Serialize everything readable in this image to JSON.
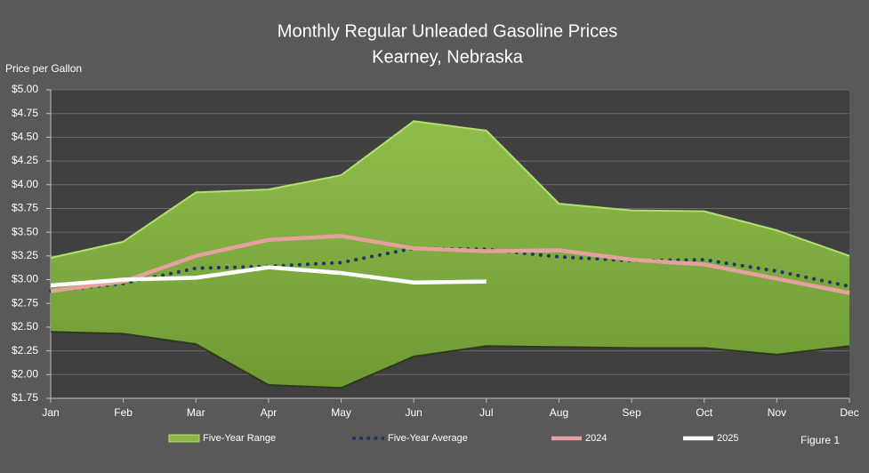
{
  "chart_data": {
    "type": "line",
    "title": "Monthly Regular Unleaded Gasoline Prices",
    "subtitle": "Kearney, Nebraska",
    "y_label": "Price per Gallon",
    "annotation": "Figure 1",
    "categories": [
      "Jan",
      "Feb",
      "Mar",
      "Apr",
      "May",
      "Jun",
      "Jul",
      "Aug",
      "Sep",
      "Oct",
      "Nov",
      "Dec"
    ],
    "ylim": [
      1.75,
      5.0
    ],
    "yticks": [
      {
        "value": 1.75,
        "label": "$1.75"
      },
      {
        "value": 2.0,
        "label": "$2.00"
      },
      {
        "value": 2.25,
        "label": "$2.25"
      },
      {
        "value": 2.5,
        "label": "$2.50"
      },
      {
        "value": 2.75,
        "label": "$2.75"
      },
      {
        "value": 3.0,
        "label": "$3.00"
      },
      {
        "value": 3.25,
        "label": "$3.25"
      },
      {
        "value": 3.5,
        "label": "$3.50"
      },
      {
        "value": 3.75,
        "label": "$3.75"
      },
      {
        "value": 4.0,
        "label": "$4.00"
      },
      {
        "value": 4.25,
        "label": "$4.25"
      },
      {
        "value": 4.5,
        "label": "$4.50"
      },
      {
        "value": 4.75,
        "label": "$4.75"
      },
      {
        "value": 5.0,
        "label": "$5.00"
      }
    ],
    "grid": true,
    "series": [
      {
        "name": "Five-Year Range",
        "style": "range",
        "color": "#8ab547",
        "high": [
          3.23,
          3.4,
          3.92,
          3.95,
          4.1,
          4.67,
          4.57,
          3.8,
          3.73,
          3.72,
          3.52,
          3.25
        ],
        "low": [
          2.45,
          2.43,
          2.32,
          1.89,
          1.86,
          2.19,
          2.3,
          2.29,
          2.28,
          2.28,
          2.21,
          2.3
        ]
      },
      {
        "name": "Five-Year Average",
        "style": "dotted",
        "color": "#1f3864",
        "values": [
          2.88,
          2.96,
          3.12,
          3.14,
          3.18,
          3.33,
          3.32,
          3.24,
          3.2,
          3.21,
          3.09,
          2.93
        ]
      },
      {
        "name": "2024",
        "style": "solid",
        "color": "#e6a0a0",
        "values": [
          2.88,
          2.98,
          3.25,
          3.42,
          3.46,
          3.33,
          3.3,
          3.31,
          3.21,
          3.16,
          3.01,
          2.86
        ]
      },
      {
        "name": "2025",
        "style": "solid",
        "color": "#ffffff",
        "values": [
          2.94,
          3.0,
          3.02,
          3.13,
          3.07,
          2.97,
          2.98,
          null,
          null,
          null,
          null,
          null
        ]
      }
    ]
  }
}
